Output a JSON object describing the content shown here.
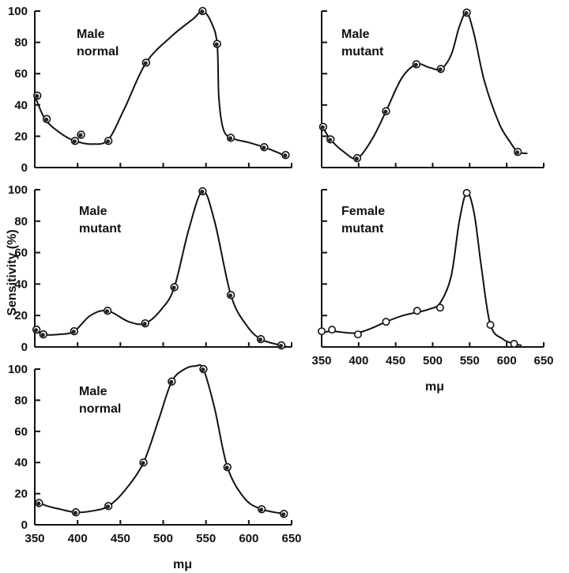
{
  "figure": {
    "ylabel": "Sensitivity (%)",
    "xlabel_right": "mμ",
    "xlabel_bottom": "mμ"
  },
  "chart_data": [
    {
      "type": "line",
      "panel": "top-left",
      "label_lines": [
        "Male",
        "normal"
      ],
      "xlim": [
        350,
        650
      ],
      "ylim": [
        0,
        100
      ],
      "x_ticks": [],
      "y_ticks": [
        0,
        20,
        40,
        60,
        80,
        100
      ],
      "markers": "filled",
      "points": [
        [
          353,
          46
        ],
        [
          364,
          31
        ],
        [
          397,
          17
        ],
        [
          404,
          21
        ],
        [
          436,
          17
        ],
        [
          480,
          67
        ],
        [
          546,
          100
        ],
        [
          563,
          79
        ],
        [
          579,
          19
        ],
        [
          618,
          13
        ],
        [
          643,
          8
        ]
      ],
      "curve": [
        [
          350,
          46
        ],
        [
          362,
          31
        ],
        [
          380,
          22
        ],
        [
          397,
          17
        ],
        [
          418,
          15
        ],
        [
          436,
          18
        ],
        [
          455,
          38
        ],
        [
          480,
          67
        ],
        [
          510,
          84
        ],
        [
          535,
          95
        ],
        [
          546,
          100
        ],
        [
          556,
          93
        ],
        [
          563,
          79
        ],
        [
          565,
          45
        ],
        [
          570,
          25
        ],
        [
          579,
          19
        ],
        [
          600,
          16
        ],
        [
          618,
          13
        ],
        [
          632,
          10
        ],
        [
          645,
          7
        ]
      ]
    },
    {
      "type": "line",
      "panel": "top-right",
      "label_lines": [
        "Male",
        "mutant"
      ],
      "xlim": [
        350,
        650
      ],
      "ylim": [
        0,
        100
      ],
      "x_ticks": [],
      "y_ticks": [],
      "markers": "filled",
      "points": [
        [
          352,
          26
        ],
        [
          362,
          18
        ],
        [
          398,
          6
        ],
        [
          437,
          36
        ],
        [
          478,
          66
        ],
        [
          511,
          63
        ],
        [
          546,
          99
        ],
        [
          615,
          10
        ]
      ],
      "curve": [
        [
          350,
          27
        ],
        [
          362,
          18
        ],
        [
          380,
          10
        ],
        [
          398,
          6
        ],
        [
          418,
          18
        ],
        [
          437,
          36
        ],
        [
          458,
          57
        ],
        [
          478,
          66
        ],
        [
          495,
          64
        ],
        [
          511,
          63
        ],
        [
          525,
          72
        ],
        [
          536,
          90
        ],
        [
          546,
          99
        ],
        [
          556,
          85
        ],
        [
          570,
          55
        ],
        [
          590,
          28
        ],
        [
          605,
          16
        ],
        [
          615,
          10
        ],
        [
          628,
          9
        ]
      ]
    },
    {
      "type": "line",
      "panel": "middle-left",
      "label_lines": [
        "Male",
        "mutant"
      ],
      "xlim": [
        350,
        650
      ],
      "ylim": [
        0,
        100
      ],
      "x_ticks": [],
      "y_ticks": [
        0,
        20,
        40,
        60,
        80,
        100
      ],
      "markers": "filled",
      "points": [
        [
          352,
          11
        ],
        [
          360,
          8
        ],
        [
          396,
          10
        ],
        [
          435,
          23
        ],
        [
          479,
          15
        ],
        [
          513,
          38
        ],
        [
          546,
          99
        ],
        [
          579,
          33
        ],
        [
          614,
          5
        ],
        [
          638,
          1
        ]
      ],
      "curve": [
        [
          350,
          11
        ],
        [
          360,
          8
        ],
        [
          378,
          8
        ],
        [
          396,
          10
        ],
        [
          415,
          20
        ],
        [
          435,
          23
        ],
        [
          460,
          16
        ],
        [
          479,
          15
        ],
        [
          498,
          24
        ],
        [
          513,
          38
        ],
        [
          530,
          75
        ],
        [
          546,
          99
        ],
        [
          560,
          80
        ],
        [
          579,
          33
        ],
        [
          597,
          14
        ],
        [
          614,
          5
        ],
        [
          638,
          1
        ],
        [
          645,
          0
        ]
      ]
    },
    {
      "type": "line",
      "panel": "middle-right",
      "label_lines": [
        "Female",
        "mutant"
      ],
      "xlim": [
        350,
        650
      ],
      "ylim": [
        0,
        100
      ],
      "x_ticks": [
        350,
        400,
        450,
        500,
        550,
        600,
        650
      ],
      "y_ticks": [],
      "markers": "open",
      "points": [
        [
          350,
          10
        ],
        [
          364,
          11
        ],
        [
          399,
          8
        ],
        [
          437,
          16
        ],
        [
          479,
          23
        ],
        [
          510,
          25
        ],
        [
          546,
          98
        ],
        [
          578,
          14
        ],
        [
          610,
          2
        ]
      ],
      "curve": [
        [
          348,
          9
        ],
        [
          364,
          10
        ],
        [
          385,
          9
        ],
        [
          399,
          9
        ],
        [
          418,
          12
        ],
        [
          437,
          16
        ],
        [
          460,
          20
        ],
        [
          479,
          22
        ],
        [
          495,
          24
        ],
        [
          510,
          28
        ],
        [
          525,
          45
        ],
        [
          536,
          80
        ],
        [
          546,
          98
        ],
        [
          556,
          85
        ],
        [
          566,
          50
        ],
        [
          578,
          14
        ],
        [
          595,
          5
        ],
        [
          610,
          2
        ],
        [
          620,
          1
        ]
      ]
    },
    {
      "type": "line",
      "panel": "bottom-left",
      "label_lines": [
        "Male",
        "normal"
      ],
      "xlim": [
        350,
        650
      ],
      "ylim": [
        0,
        100
      ],
      "x_ticks": [
        350,
        400,
        450,
        500,
        550,
        600,
        650
      ],
      "y_ticks": [
        0,
        20,
        40,
        60,
        80,
        100
      ],
      "markers": "filled",
      "points": [
        [
          355,
          14
        ],
        [
          398,
          8
        ],
        [
          436,
          12
        ],
        [
          477,
          40
        ],
        [
          510,
          92
        ],
        [
          547,
          100
        ],
        [
          575,
          37
        ],
        [
          615,
          10
        ],
        [
          641,
          7
        ]
      ],
      "curve": [
        [
          350,
          15
        ],
        [
          365,
          12
        ],
        [
          380,
          10
        ],
        [
          398,
          8
        ],
        [
          418,
          9
        ],
        [
          436,
          12
        ],
        [
          455,
          22
        ],
        [
          477,
          40
        ],
        [
          495,
          68
        ],
        [
          510,
          92
        ],
        [
          525,
          100
        ],
        [
          538,
          102
        ],
        [
          547,
          100
        ],
        [
          560,
          75
        ],
        [
          575,
          37
        ],
        [
          595,
          17
        ],
        [
          615,
          10
        ],
        [
          641,
          7
        ],
        [
          645,
          6
        ]
      ]
    }
  ]
}
